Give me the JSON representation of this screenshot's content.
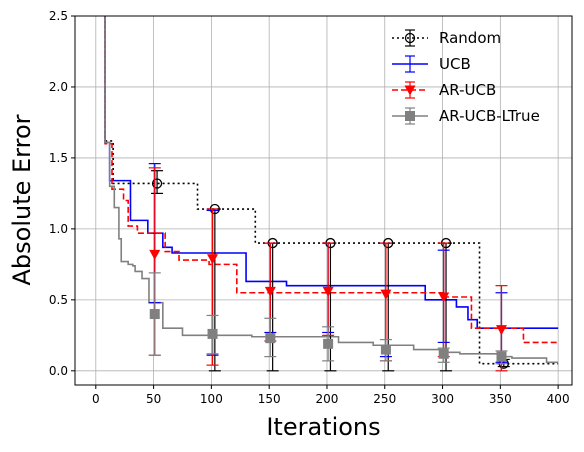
{
  "chart_data": {
    "type": "line",
    "title": "",
    "xlabel": "Iterations",
    "ylabel": "Absolute Error",
    "xlim": [
      -18,
      412
    ],
    "ylim": [
      -0.1,
      2.5
    ],
    "xticks": [
      0,
      50,
      100,
      150,
      200,
      250,
      300,
      350,
      400
    ],
    "yticks": [
      0.0,
      0.5,
      1.0,
      1.5,
      2.0,
      2.5
    ],
    "xtick_labels": [
      "0",
      "50",
      "100",
      "150",
      "200",
      "250",
      "300",
      "350",
      "400"
    ],
    "ytick_labels": [
      "0.0",
      "0.5",
      "1.0",
      "1.5",
      "2.0",
      "2.5"
    ],
    "grid": true,
    "legend_position": "top-right",
    "series": [
      {
        "name": "Random",
        "color": "#000000",
        "style": "dotted",
        "marker": "circle-open",
        "step_x": [
          3,
          7,
          8,
          13,
          15,
          85,
          88,
          135,
          138,
          328,
          332,
          400
        ],
        "step_y": [
          2.6,
          2.6,
          1.62,
          1.62,
          1.32,
          1.32,
          1.14,
          1.14,
          0.9,
          0.9,
          0.05,
          0.05
        ],
        "marker_x": [
          53,
          103,
          153,
          203,
          253,
          303,
          353
        ],
        "marker_y": [
          1.32,
          1.14,
          0.9,
          0.9,
          0.9,
          0.9,
          0.05
        ],
        "err_lo": [
          1.25,
          0.0,
          0.0,
          0.0,
          0.0,
          0.0,
          0.03
        ],
        "err_hi": [
          1.41,
          1.14,
          0.9,
          0.9,
          0.9,
          0.9,
          0.08
        ]
      },
      {
        "name": "UCB",
        "color": "#0000ff",
        "style": "solid",
        "marker": "none",
        "step_x": [
          3,
          8,
          12,
          30,
          45,
          58,
          66,
          130,
          165,
          285,
          312,
          322,
          330,
          400
        ],
        "step_y": [
          2.6,
          1.61,
          1.34,
          1.06,
          0.97,
          0.87,
          0.83,
          0.63,
          0.6,
          0.5,
          0.45,
          0.36,
          0.3,
          0.3
        ],
        "marker_x": [
          51,
          101,
          151,
          201,
          251,
          301,
          351
        ],
        "marker_y": [
          0.97,
          0.76,
          0.63,
          0.6,
          0.6,
          0.5,
          0.3
        ],
        "err_lo": [
          0.48,
          0.11,
          0.27,
          0.27,
          0.1,
          0.2,
          0.06
        ],
        "err_hi": [
          1.46,
          1.13,
          0.9,
          0.9,
          0.9,
          0.85,
          0.55
        ]
      },
      {
        "name": "AR-UCB",
        "color": "#ff0000",
        "style": "dashed",
        "marker": "triangle-down",
        "step_x": [
          3,
          8,
          14,
          24,
          28,
          36,
          60,
          72,
          98,
          122,
          302,
          325,
          370,
          400
        ],
        "step_y": [
          2.6,
          1.6,
          1.28,
          1.2,
          1.02,
          0.97,
          0.84,
          0.78,
          0.75,
          0.55,
          0.52,
          0.3,
          0.2,
          0.2
        ],
        "marker_x": [
          51,
          101,
          151,
          201,
          251,
          301,
          351
        ],
        "marker_y": [
          0.82,
          0.79,
          0.56,
          0.56,
          0.54,
          0.52,
          0.29
        ],
        "err_lo": [
          0.11,
          0.04,
          0.21,
          0.25,
          0.07,
          0.1,
          0.0
        ],
        "err_hi": [
          1.43,
          1.14,
          0.9,
          0.9,
          0.9,
          0.9,
          0.6
        ]
      },
      {
        "name": "AR-UCB-LTrue",
        "color": "#808080",
        "style": "solid",
        "marker": "square",
        "step_x": [
          3,
          8,
          12,
          16,
          20,
          22,
          28,
          32,
          34,
          40,
          46,
          58,
          75,
          135,
          210,
          240,
          275,
          298,
          315,
          330,
          350,
          360,
          390,
          400
        ],
        "step_y": [
          2.6,
          1.61,
          1.3,
          1.15,
          0.93,
          0.77,
          0.75,
          0.74,
          0.7,
          0.65,
          0.48,
          0.3,
          0.25,
          0.24,
          0.2,
          0.18,
          0.15,
          0.13,
          0.12,
          0.12,
          0.1,
          0.09,
          0.06,
          0.06
        ],
        "marker_x": [
          51,
          101,
          151,
          201,
          251,
          301,
          351
        ],
        "marker_y": [
          0.4,
          0.26,
          0.23,
          0.19,
          0.15,
          0.12,
          0.1
        ],
        "err_lo": [
          0.11,
          0.12,
          0.1,
          0.07,
          0.07,
          0.06,
          0.05
        ],
        "err_hi": [
          0.69,
          0.39,
          0.37,
          0.31,
          0.22,
          0.16,
          0.14
        ]
      }
    ]
  }
}
